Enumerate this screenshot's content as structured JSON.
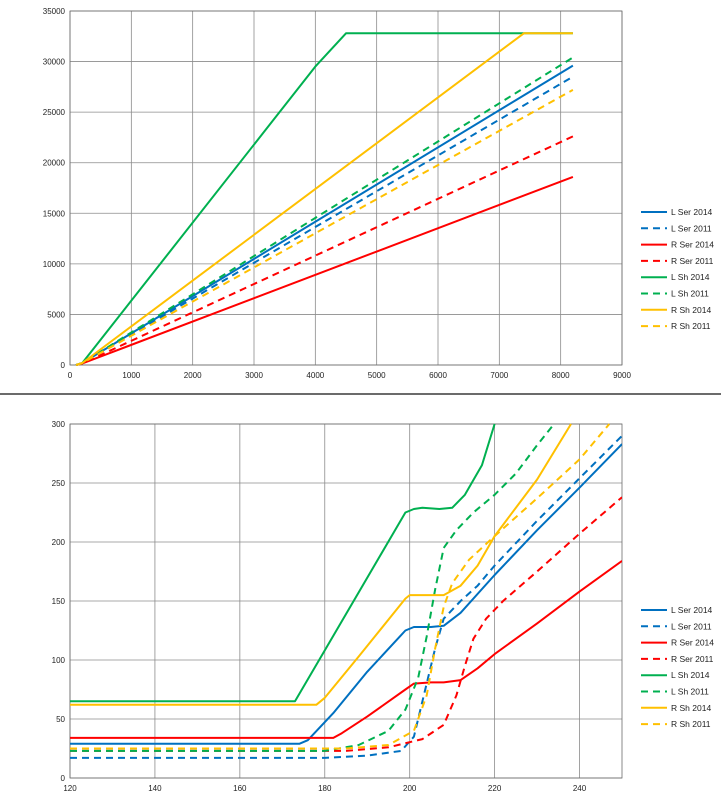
{
  "chart_data": [
    {
      "type": "line",
      "title": "",
      "xlabel": "",
      "ylabel": "",
      "xlim": [
        0,
        9000
      ],
      "ylim": [
        0,
        35000
      ],
      "xticks": [
        0,
        1000,
        2000,
        3000,
        4000,
        5000,
        6000,
        7000,
        8000,
        9000
      ],
      "yticks": [
        0,
        5000,
        10000,
        15000,
        20000,
        25000,
        30000,
        35000
      ],
      "xtick_labels": [
        "0",
        "1000",
        "2000",
        "3000",
        "4000",
        "5000",
        "6000",
        "7000",
        "8000",
        "9000"
      ],
      "ytick_labels": [
        "0",
        "5000",
        "10000",
        "15000",
        "20000",
        "25000",
        "30000",
        "35000"
      ],
      "grid": true,
      "legend_position": "right",
      "series": [
        {
          "name": "L Ser 2014",
          "color": "#0070c0",
          "dash": "solid",
          "x": [
            100,
            200,
            8200
          ],
          "y": [
            0,
            200,
            29600
          ]
        },
        {
          "name": "L Ser 2011",
          "color": "#0070c0",
          "dash": "dashed",
          "x": [
            100,
            200,
            8200
          ],
          "y": [
            0,
            200,
            28500
          ]
        },
        {
          "name": "R Ser 2014",
          "color": "#ff0000",
          "dash": "solid",
          "x": [
            100,
            200,
            8200
          ],
          "y": [
            0,
            150,
            18600
          ]
        },
        {
          "name": "R Ser 2011",
          "color": "#ff0000",
          "dash": "dashed",
          "x": [
            100,
            200,
            8200
          ],
          "y": [
            0,
            150,
            22600
          ]
        },
        {
          "name": "L Sh 2014",
          "color": "#00b050",
          "dash": "solid",
          "x": [
            100,
            200,
            4000,
            4500,
            8200
          ],
          "y": [
            0,
            200,
            29500,
            32800,
            32800
          ]
        },
        {
          "name": "L Sh 2011",
          "color": "#00b050",
          "dash": "dashed",
          "x": [
            100,
            200,
            8200
          ],
          "y": [
            0,
            200,
            30400
          ]
        },
        {
          "name": "R Sh 2014",
          "color": "#ffc000",
          "dash": "solid",
          "x": [
            100,
            200,
            7400,
            8200
          ],
          "y": [
            0,
            200,
            32800,
            32800
          ]
        },
        {
          "name": "R Sh 2011",
          "color": "#ffc000",
          "dash": "dashed",
          "x": [
            100,
            200,
            8200
          ],
          "y": [
            0,
            200,
            27200
          ]
        }
      ]
    },
    {
      "type": "line",
      "title": "",
      "xlabel": "",
      "ylabel": "",
      "xlim": [
        120,
        250
      ],
      "ylim": [
        0,
        300
      ],
      "xticks": [
        120,
        140,
        160,
        180,
        200,
        220,
        240
      ],
      "yticks": [
        0,
        50,
        100,
        150,
        200,
        250,
        300
      ],
      "xtick_labels": [
        "120",
        "140",
        "160",
        "180",
        "200",
        "220",
        "240"
      ],
      "ytick_labels": [
        "0",
        "50",
        "100",
        "150",
        "200",
        "250",
        "300"
      ],
      "grid": true,
      "legend_position": "right",
      "series": [
        {
          "name": "L Ser 2014",
          "color": "#0070c0",
          "dash": "solid",
          "x": [
            120,
            174,
            176,
            182,
            190,
            199,
            201,
            205,
            208,
            212,
            220,
            230,
            240,
            250
          ],
          "y": [
            29,
            29,
            32,
            55,
            90,
            125,
            128,
            128,
            129,
            140,
            172,
            210,
            246,
            283
          ]
        },
        {
          "name": "L Ser 2011",
          "color": "#0070c0",
          "dash": "dashed",
          "x": [
            120,
            180,
            190,
            198,
            201,
            203,
            206,
            208,
            212,
            216,
            220,
            230,
            240,
            250
          ],
          "y": [
            17,
            17,
            19,
            23,
            35,
            65,
            110,
            135,
            150,
            163,
            180,
            218,
            254,
            290
          ]
        },
        {
          "name": "R Ser 2014",
          "color": "#ff0000",
          "dash": "solid",
          "x": [
            120,
            182,
            184,
            190,
            199,
            201,
            205,
            208,
            212,
            216,
            220,
            230,
            240,
            250
          ],
          "y": [
            34,
            34,
            38,
            52,
            75,
            80,
            81,
            81,
            83,
            93,
            105,
            131,
            158,
            184
          ]
        },
        {
          "name": "R Ser 2011",
          "color": "#ff0000",
          "dash": "dashed",
          "x": [
            120,
            185,
            195,
            203,
            208,
            211,
            213,
            215,
            218,
            222,
            230,
            240,
            250
          ],
          "y": [
            23,
            23,
            26,
            33,
            45,
            70,
            95,
            118,
            135,
            150,
            175,
            207,
            238
          ]
        },
        {
          "name": "L Sh 2014",
          "color": "#00b050",
          "dash": "solid",
          "x": [
            120,
            173,
            199,
            201,
            203,
            207,
            210,
            213,
            217,
            220
          ],
          "y": [
            65,
            65,
            225,
            228,
            229,
            228,
            229,
            240,
            265,
            300
          ]
        },
        {
          "name": "L Sh 2011",
          "color": "#00b050",
          "dash": "dashed",
          "x": [
            120,
            180,
            188,
            195,
            199,
            202,
            204,
            206,
            208,
            211,
            215,
            220,
            225,
            230,
            234
          ],
          "y": [
            23,
            23,
            28,
            40,
            58,
            85,
            120,
            160,
            195,
            210,
            225,
            240,
            258,
            282,
            300
          ]
        },
        {
          "name": "R Sh 2014",
          "color": "#ffc000",
          "dash": "solid",
          "x": [
            120,
            178,
            180,
            188,
            199,
            200,
            204,
            208,
            212,
            216,
            220,
            230,
            238
          ],
          "y": [
            62,
            62,
            68,
            103,
            152,
            155,
            155,
            155,
            163,
            180,
            205,
            253,
            300
          ]
        },
        {
          "name": "R Sh 2011",
          "color": "#ffc000",
          "dash": "dashed",
          "x": [
            120,
            185,
            195,
            201,
            204,
            206,
            208,
            210,
            214,
            220,
            230,
            240,
            247
          ],
          "y": [
            25,
            25,
            28,
            40,
            70,
            110,
            145,
            165,
            185,
            205,
            237,
            270,
            300
          ]
        }
      ]
    }
  ]
}
